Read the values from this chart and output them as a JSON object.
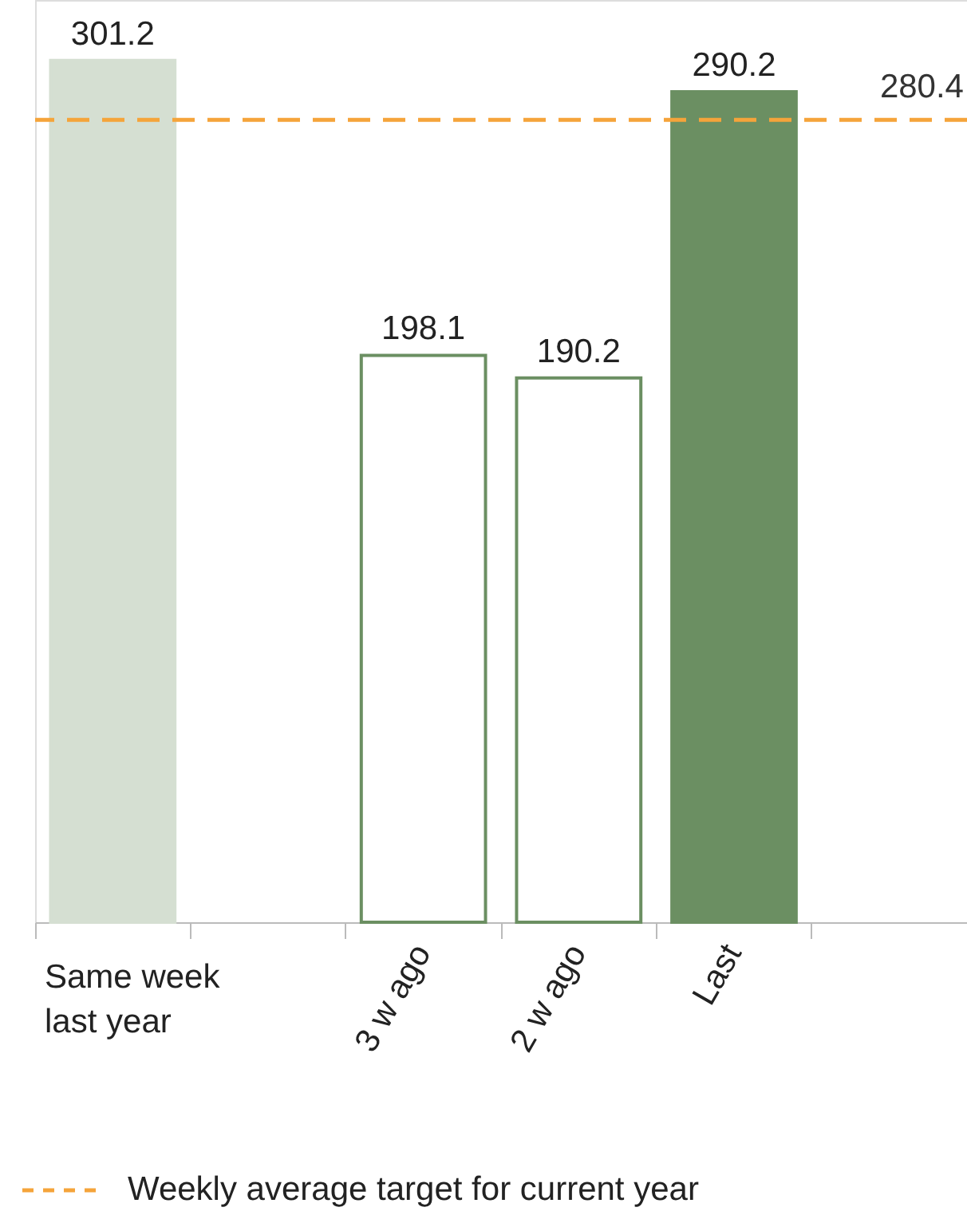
{
  "chart_data": {
    "type": "bar",
    "categories": [
      "Same week last year",
      null,
      "3 w ago",
      "2 w ago",
      "Last",
      null
    ],
    "values": [
      301.2,
      null,
      198.1,
      190.2,
      290.2,
      null
    ],
    "colors": [
      "#d5dfd2",
      "#ffffff",
      "#ffffff",
      "#ffffff",
      "#6b8f62",
      "#ffffff"
    ],
    "data_labels": true,
    "ref_lines": [
      {
        "axis": "y",
        "value": 280.4,
        "label": "280.4",
        "color": "#f5a43a",
        "line_style": "dashed"
      }
    ],
    "annotations": [
      "Weekly average target for current year"
    ]
  }
}
